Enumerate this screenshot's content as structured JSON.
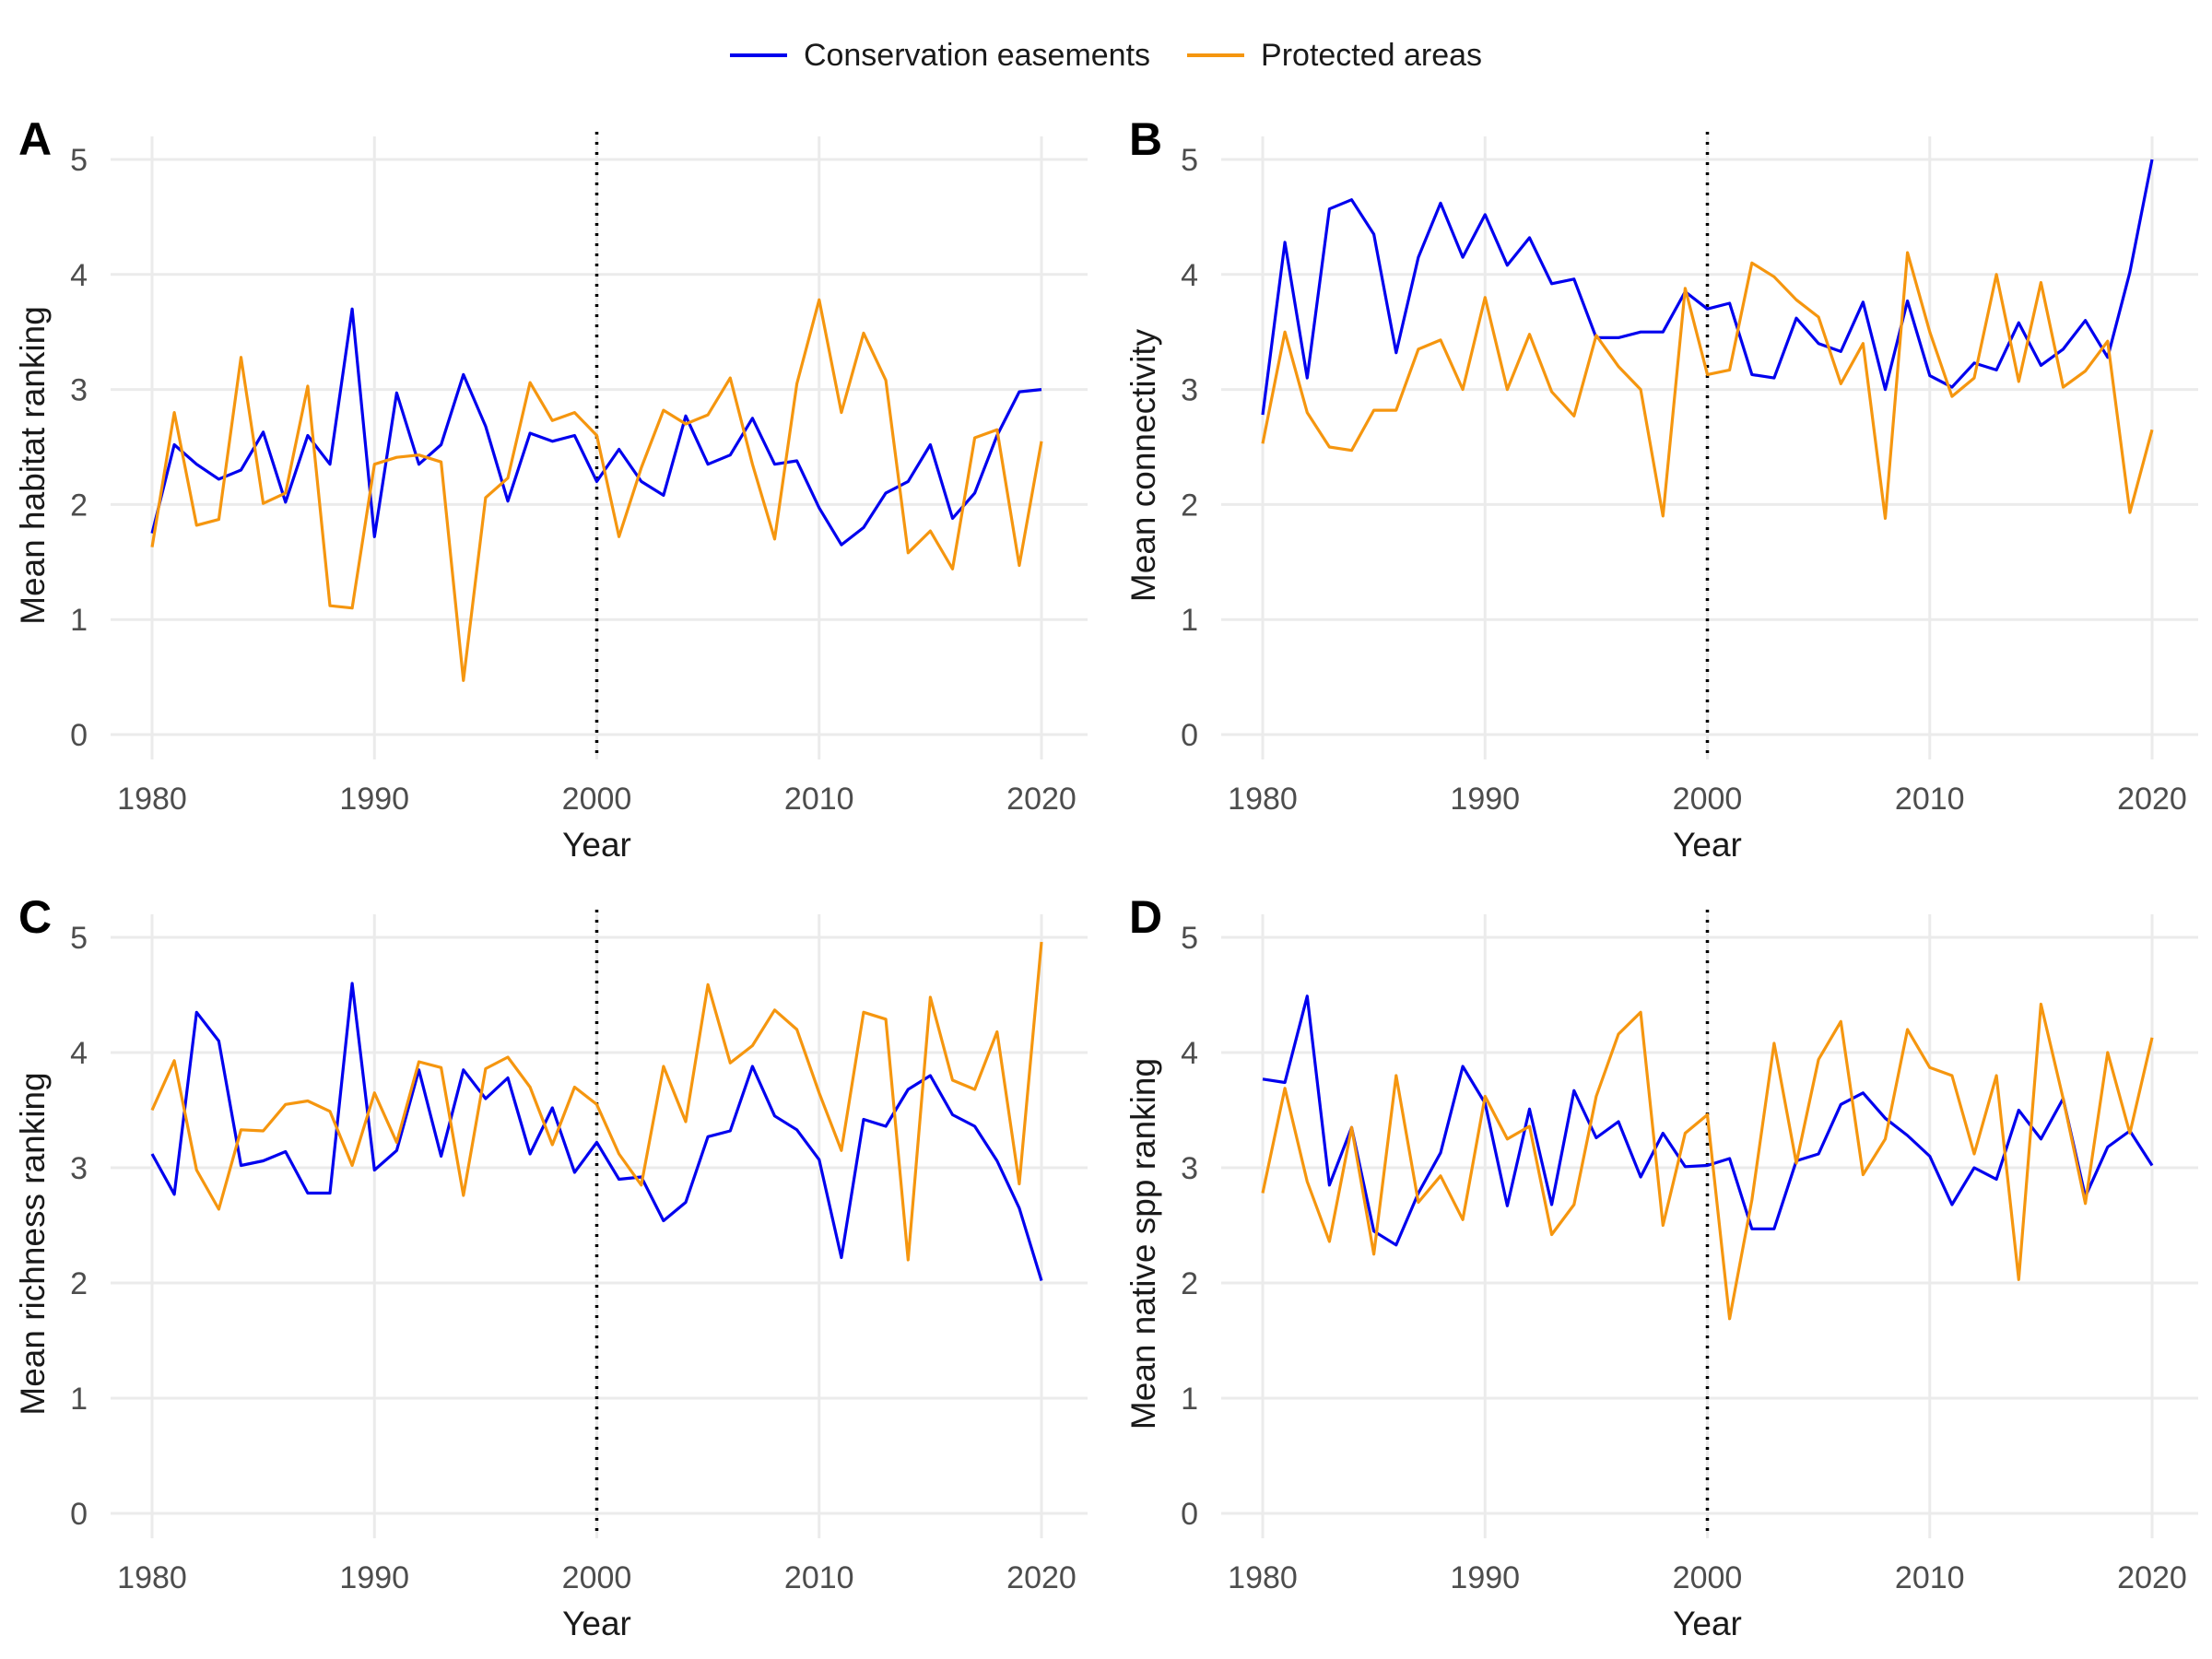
{
  "legend": {
    "series": [
      {
        "name": "Conservation easements",
        "color": "#0000ee"
      },
      {
        "name": "Protected areas",
        "color": "#f5960f"
      }
    ]
  },
  "chart_data": [
    {
      "panel": "A",
      "type": "line",
      "xlabel": "Year",
      "ylabel": "Mean habitat ranking",
      "xlim": [
        1980,
        2020
      ],
      "ylim": [
        0,
        5
      ],
      "xticks": [
        1980,
        1990,
        2000,
        2010,
        2020
      ],
      "yticks": [
        0,
        1,
        2,
        3,
        4,
        5
      ],
      "vline": 2000,
      "grid": true,
      "x": [
        1980,
        1981,
        1982,
        1983,
        1984,
        1985,
        1986,
        1987,
        1988,
        1989,
        1990,
        1991,
        1992,
        1993,
        1994,
        1995,
        1996,
        1997,
        1998,
        1999,
        2000,
        2001,
        2002,
        2003,
        2004,
        2005,
        2006,
        2007,
        2008,
        2009,
        2010,
        2011,
        2012,
        2013,
        2014,
        2015,
        2016,
        2017,
        2018,
        2019,
        2020
      ],
      "series": [
        {
          "name": "Conservation easements",
          "color": "#0000ee",
          "values": [
            1.75,
            2.52,
            2.35,
            2.22,
            2.3,
            2.63,
            2.02,
            2.6,
            2.35,
            3.7,
            1.72,
            2.97,
            2.35,
            2.52,
            3.13,
            2.68,
            2.03,
            2.62,
            2.55,
            2.6,
            2.2,
            2.48,
            2.2,
            2.08,
            2.77,
            2.35,
            2.43,
            2.75,
            2.35,
            2.38,
            1.97,
            1.65,
            1.8,
            2.1,
            2.2,
            2.52,
            1.88,
            2.1,
            2.6,
            2.98,
            3.0
          ]
        },
        {
          "name": "Protected areas",
          "color": "#f5960f",
          "values": [
            1.63,
            2.8,
            1.82,
            1.87,
            3.28,
            2.01,
            2.1,
            3.03,
            1.12,
            1.1,
            2.35,
            2.41,
            2.43,
            2.37,
            0.47,
            2.06,
            2.23,
            3.06,
            2.73,
            2.8,
            2.6,
            1.72,
            2.32,
            2.82,
            2.7,
            2.78,
            3.1,
            2.35,
            1.7,
            3.05,
            3.78,
            2.8,
            3.49,
            3.08,
            1.58,
            1.77,
            1.44,
            2.58,
            2.65,
            1.47,
            2.55
          ]
        }
      ]
    },
    {
      "panel": "B",
      "type": "line",
      "xlabel": "Year",
      "ylabel": "Mean connectivity",
      "xlim": [
        1980,
        2020
      ],
      "ylim": [
        0,
        5
      ],
      "xticks": [
        1980,
        1990,
        2000,
        2010,
        2020
      ],
      "yticks": [
        0,
        1,
        2,
        3,
        4,
        5
      ],
      "vline": 2000,
      "grid": true,
      "x": [
        1980,
        1981,
        1982,
        1983,
        1984,
        1985,
        1986,
        1987,
        1988,
        1989,
        1990,
        1991,
        1992,
        1993,
        1994,
        1995,
        1996,
        1997,
        1998,
        1999,
        2000,
        2001,
        2002,
        2003,
        2004,
        2005,
        2006,
        2007,
        2008,
        2009,
        2010,
        2011,
        2012,
        2013,
        2014,
        2015,
        2016,
        2017,
        2018,
        2019,
        2020
      ],
      "series": [
        {
          "name": "Conservation easements",
          "color": "#0000ee",
          "values": [
            2.78,
            4.28,
            3.1,
            4.57,
            4.65,
            4.35,
            3.32,
            4.15,
            4.62,
            4.15,
            4.52,
            4.08,
            4.32,
            3.92,
            3.96,
            3.45,
            3.45,
            3.5,
            3.5,
            3.85,
            3.7,
            3.75,
            3.13,
            3.1,
            3.62,
            3.4,
            3.33,
            3.76,
            3.0,
            3.77,
            3.12,
            3.02,
            3.23,
            3.17,
            3.58,
            3.21,
            3.35,
            3.6,
            3.28,
            4.02,
            5.0
          ]
        },
        {
          "name": "Protected areas",
          "color": "#f5960f",
          "values": [
            2.53,
            3.5,
            2.8,
            2.5,
            2.47,
            2.82,
            2.82,
            3.35,
            3.43,
            3.0,
            3.8,
            3.0,
            3.48,
            2.98,
            2.77,
            3.47,
            3.2,
            3.0,
            1.9,
            3.88,
            3.13,
            3.17,
            4.1,
            3.98,
            3.78,
            3.63,
            3.05,
            3.4,
            1.88,
            4.19,
            3.5,
            2.94,
            3.1,
            4.0,
            3.07,
            3.93,
            3.02,
            3.16,
            3.42,
            1.93,
            2.65
          ]
        }
      ]
    },
    {
      "panel": "C",
      "type": "line",
      "xlabel": "Year",
      "ylabel": "Mean richness ranking",
      "xlim": [
        1980,
        2020
      ],
      "ylim": [
        0,
        5
      ],
      "xticks": [
        1980,
        1990,
        2000,
        2010,
        2020
      ],
      "yticks": [
        0,
        1,
        2,
        3,
        4,
        5
      ],
      "vline": 2000,
      "grid": true,
      "x": [
        1980,
        1981,
        1982,
        1983,
        1984,
        1985,
        1986,
        1987,
        1988,
        1989,
        1990,
        1991,
        1992,
        1993,
        1994,
        1995,
        1996,
        1997,
        1998,
        1999,
        2000,
        2001,
        2002,
        2003,
        2004,
        2005,
        2006,
        2007,
        2008,
        2009,
        2010,
        2011,
        2012,
        2013,
        2014,
        2015,
        2016,
        2017,
        2018,
        2019,
        2020
      ],
      "series": [
        {
          "name": "Conservation easements",
          "color": "#0000ee",
          "values": [
            3.12,
            2.77,
            4.35,
            4.1,
            3.02,
            3.06,
            3.14,
            2.78,
            2.78,
            4.6,
            2.98,
            3.15,
            3.85,
            3.1,
            3.85,
            3.6,
            3.78,
            3.12,
            3.52,
            2.96,
            3.22,
            2.9,
            2.92,
            2.54,
            2.7,
            3.27,
            3.32,
            3.88,
            3.45,
            3.33,
            3.07,
            2.22,
            3.42,
            3.36,
            3.68,
            3.8,
            3.46,
            3.36,
            3.06,
            2.65,
            2.02
          ]
        },
        {
          "name": "Protected areas",
          "color": "#f5960f",
          "values": [
            3.5,
            3.93,
            2.98,
            2.64,
            3.33,
            3.32,
            3.55,
            3.58,
            3.49,
            3.02,
            3.65,
            3.22,
            3.92,
            3.87,
            2.76,
            3.86,
            3.96,
            3.7,
            3.2,
            3.7,
            3.55,
            3.12,
            2.85,
            3.88,
            3.4,
            4.59,
            3.91,
            4.06,
            4.37,
            4.2,
            3.65,
            3.15,
            4.35,
            4.29,
            2.2,
            4.48,
            3.76,
            3.68,
            4.18,
            2.86,
            4.96
          ]
        }
      ]
    },
    {
      "panel": "D",
      "type": "line",
      "xlabel": "Year",
      "ylabel": "Mean native spp ranking",
      "xlim": [
        1980,
        2020
      ],
      "ylim": [
        0,
        5
      ],
      "xticks": [
        1980,
        1990,
        2000,
        2010,
        2020
      ],
      "yticks": [
        0,
        1,
        2,
        3,
        4,
        5
      ],
      "vline": 2000,
      "grid": true,
      "x": [
        1980,
        1981,
        1982,
        1983,
        1984,
        1985,
        1986,
        1987,
        1988,
        1989,
        1990,
        1991,
        1992,
        1993,
        1994,
        1995,
        1996,
        1997,
        1998,
        1999,
        2000,
        2001,
        2002,
        2003,
        2004,
        2005,
        2006,
        2007,
        2008,
        2009,
        2010,
        2011,
        2012,
        2013,
        2014,
        2015,
        2016,
        2017,
        2018,
        2019,
        2020
      ],
      "series": [
        {
          "name": "Conservation easements",
          "color": "#0000ee",
          "values": [
            3.77,
            3.74,
            4.49,
            2.85,
            3.35,
            2.45,
            2.33,
            2.78,
            3.13,
            3.88,
            3.56,
            2.67,
            3.51,
            2.68,
            3.67,
            3.26,
            3.4,
            2.92,
            3.3,
            3.01,
            3.02,
            3.08,
            2.47,
            2.47,
            3.06,
            3.12,
            3.55,
            3.65,
            3.43,
            3.28,
            3.1,
            2.68,
            3.0,
            2.9,
            3.5,
            3.25,
            3.6,
            2.75,
            3.18,
            3.32,
            3.02
          ]
        },
        {
          "name": "Protected areas",
          "color": "#f5960f",
          "values": [
            2.78,
            3.69,
            2.88,
            2.36,
            3.35,
            2.25,
            3.8,
            2.7,
            2.93,
            2.55,
            3.62,
            3.25,
            3.36,
            2.42,
            2.68,
            3.62,
            4.16,
            4.35,
            2.5,
            3.3,
            3.46,
            1.69,
            2.72,
            4.08,
            3.04,
            3.94,
            4.27,
            2.94,
            3.25,
            4.2,
            3.87,
            3.8,
            3.12,
            3.8,
            2.03,
            4.42,
            3.6,
            2.69,
            4.0,
            3.3,
            4.13
          ]
        }
      ]
    }
  ]
}
